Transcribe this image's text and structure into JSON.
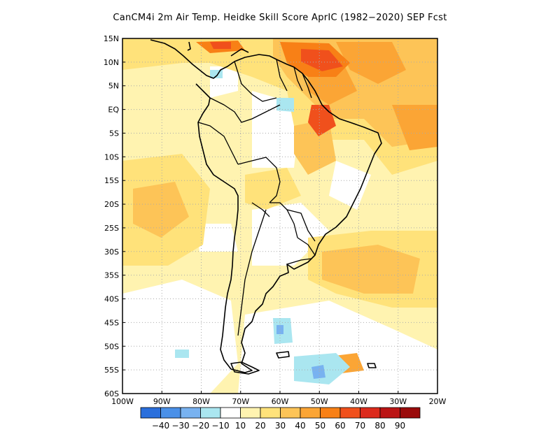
{
  "title": "CanCM4i  2m Air Temp. Heidke Skill Score AprIC (1982−2020) SEP Fcst",
  "lat_labels": [
    "15N",
    "10N",
    "5N",
    "EQ",
    "5S",
    "10S",
    "15S",
    "20S",
    "25S",
    "30S",
    "35S",
    "40S",
    "45S",
    "50S",
    "55S",
    "60S"
  ],
  "lon_labels": [
    "100W",
    "90W",
    "80W",
    "70W",
    "60W",
    "50W",
    "40W",
    "30W",
    "20W"
  ],
  "colorbar": {
    "colors": [
      "#2a6fdc",
      "#4a90e8",
      "#78b2f0",
      "#aae6f0",
      "#ffffff",
      "#fff3b0",
      "#ffe27a",
      "#fdc457",
      "#fba535",
      "#f88016",
      "#f0501c",
      "#dc2a1c",
      "#bb1414",
      "#9a0a0a"
    ],
    "labels": [
      "−40",
      "−30",
      "−20",
      "−10",
      "10",
      "20",
      "30",
      "40",
      "50",
      "60",
      "70",
      "80",
      "90"
    ]
  },
  "map": {
    "lon_range": [
      -100,
      -20
    ],
    "lat_range": [
      -60,
      15
    ]
  }
}
